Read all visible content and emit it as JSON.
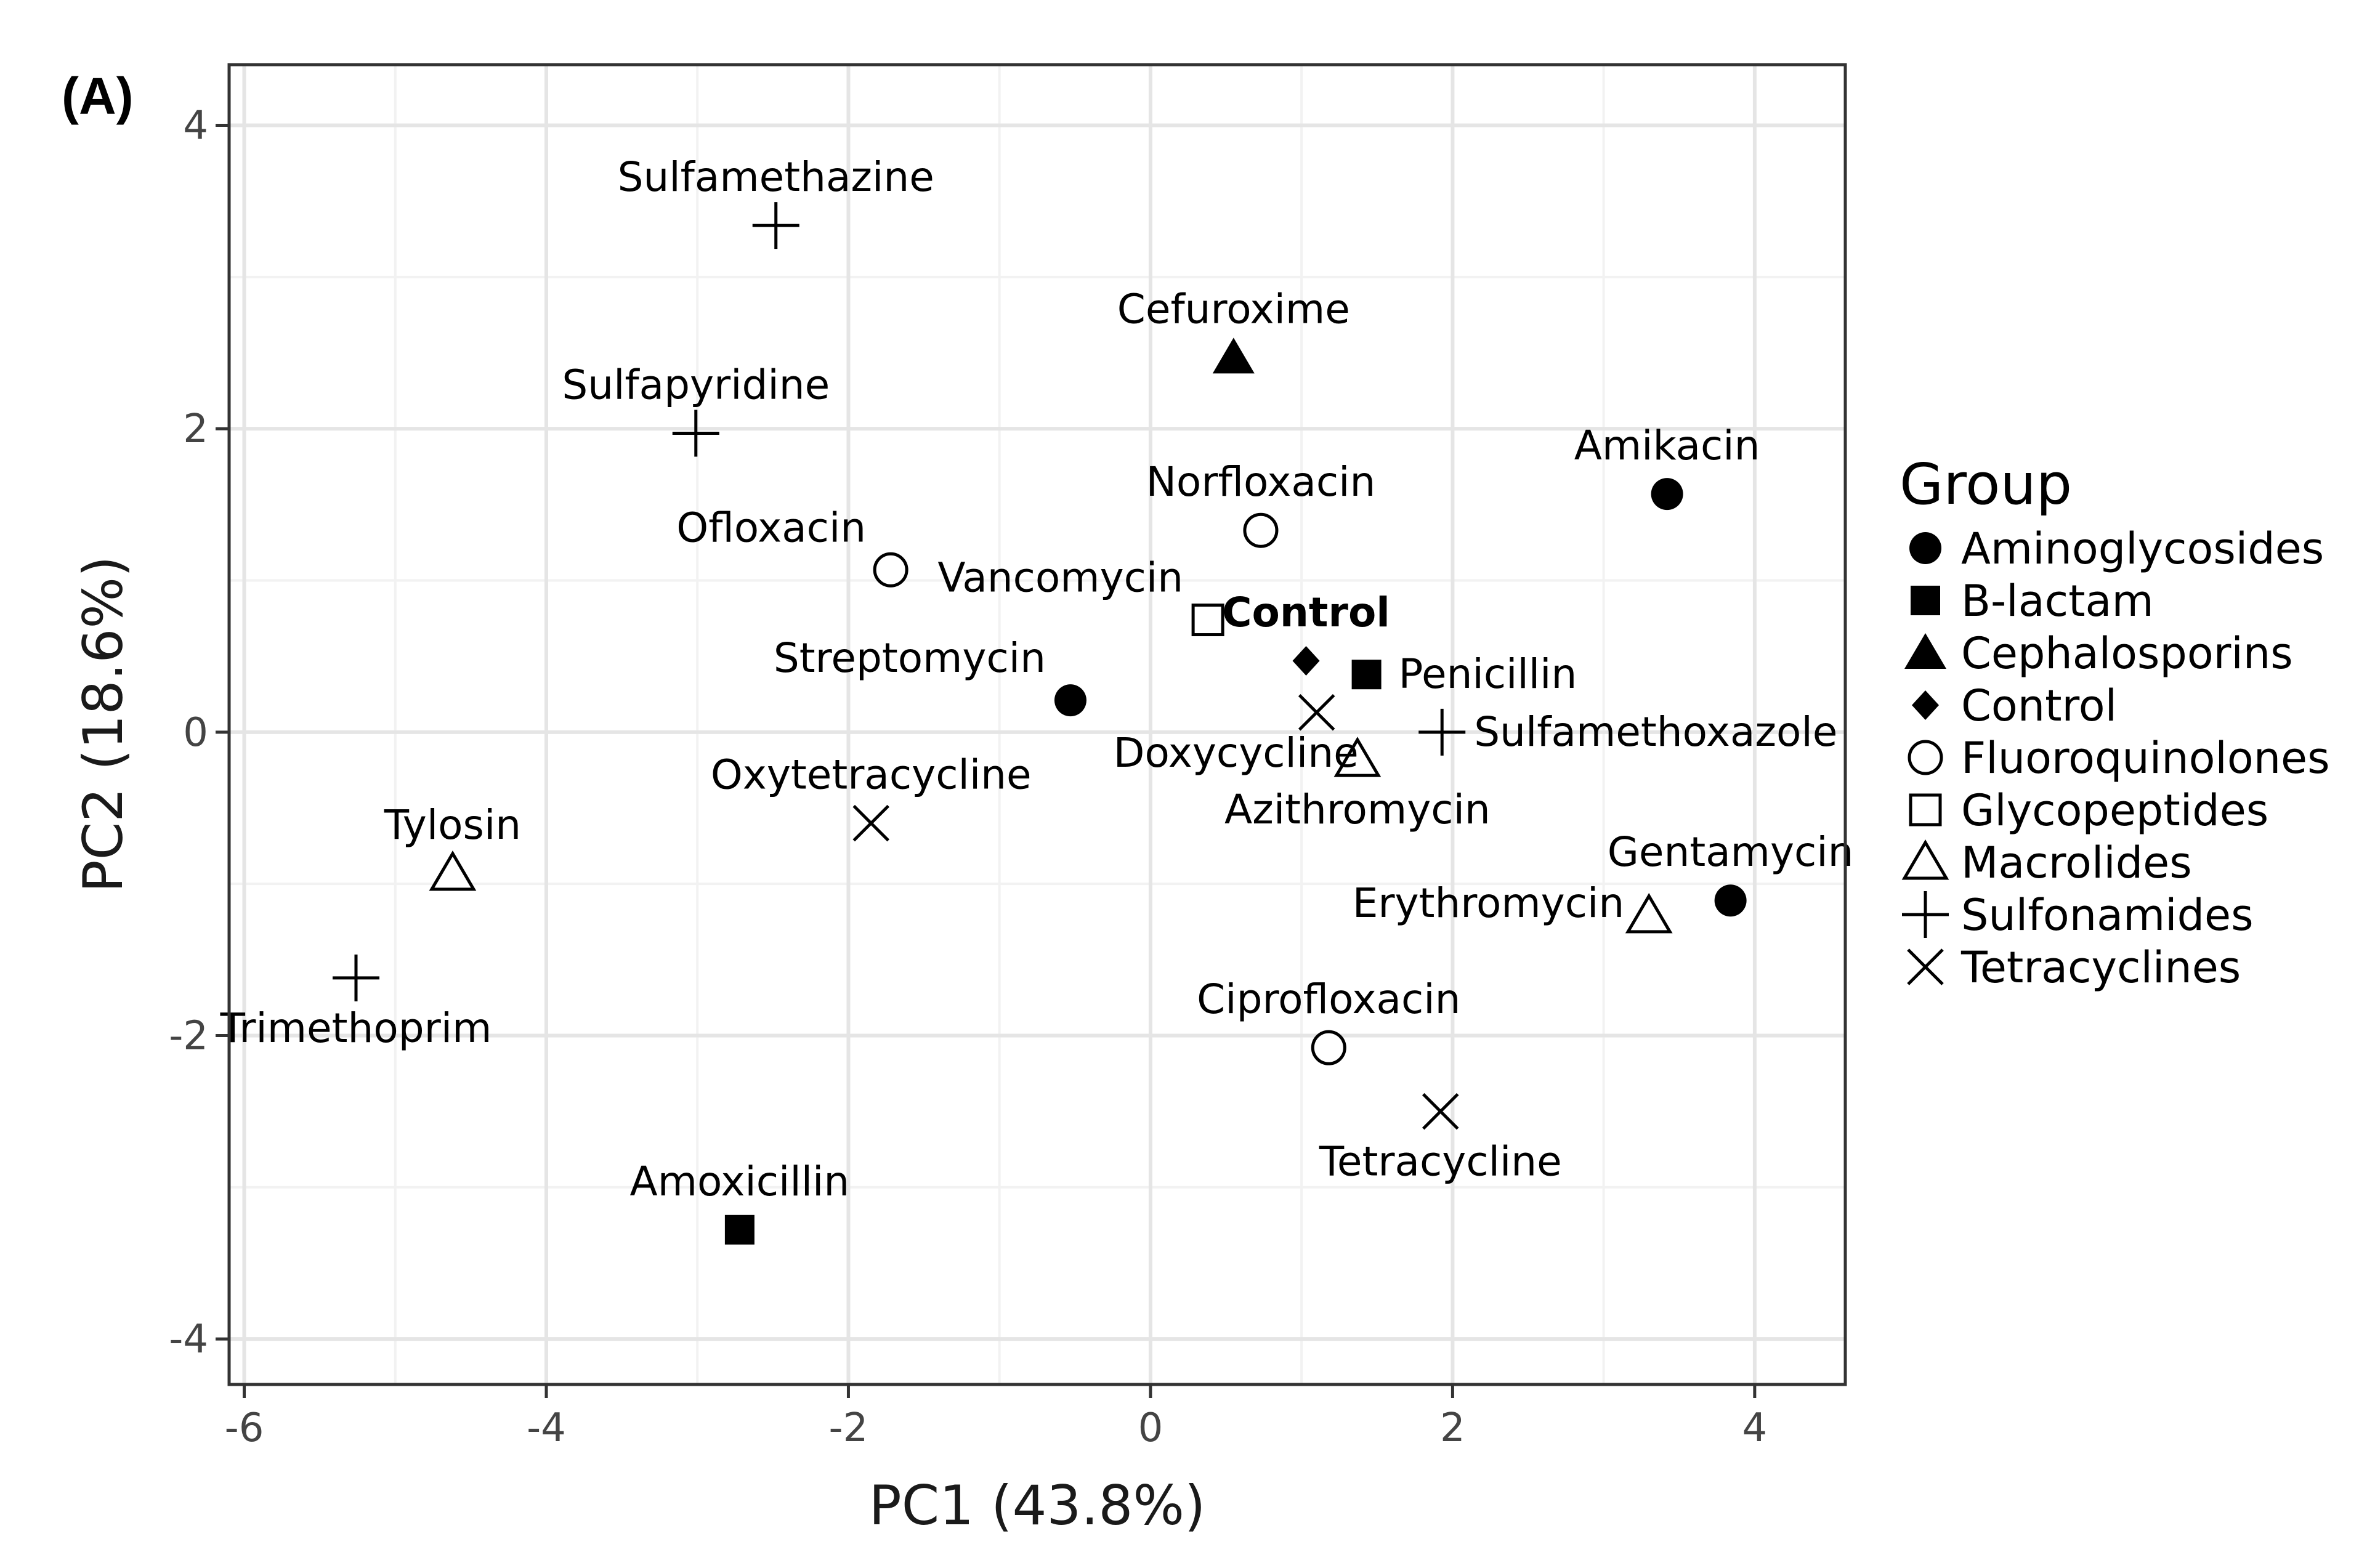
{
  "panel_label": "(A)",
  "chart_data": {
    "type": "scatter",
    "xlabel": "PC1 (43.8%)",
    "ylabel": "PC2 (18.6%)",
    "xlim": [
      -6.1,
      4.6
    ],
    "ylim": [
      -4.3,
      4.4
    ],
    "xticks": [
      -6,
      -4,
      -2,
      0,
      2,
      4
    ],
    "yticks": [
      -4,
      -2,
      0,
      2,
      4
    ],
    "grid": true,
    "legend": {
      "title": "Group",
      "position": "right",
      "items": [
        {
          "name": "Aminoglycosides",
          "shape": "filled-circle"
        },
        {
          "name": "B-lactam",
          "shape": "filled-square"
        },
        {
          "name": "Cephalosporins",
          "shape": "filled-triangle"
        },
        {
          "name": "Control",
          "shape": "filled-diamond"
        },
        {
          "name": "Fluoroquinolones",
          "shape": "open-circle"
        },
        {
          "name": "Glycopeptides",
          "shape": "open-square"
        },
        {
          "name": "Macrolides",
          "shape": "open-triangle"
        },
        {
          "name": "Sulfonamides",
          "shape": "plus"
        },
        {
          "name": "Tetracyclines",
          "shape": "cross"
        }
      ]
    },
    "points": [
      {
        "label": "Sulfamethazine",
        "group": "Sulfonamides",
        "x": -2.48,
        "y": 3.34,
        "label_pos": "above"
      },
      {
        "label": "Cefuroxime",
        "group": "Cephalosporins",
        "x": 0.55,
        "y": 2.47,
        "label_pos": "above"
      },
      {
        "label": "Sulfapyridine",
        "group": "Sulfonamides",
        "x": -3.01,
        "y": 1.97,
        "label_pos": "above"
      },
      {
        "label": "Amikacin",
        "group": "Aminoglycosides",
        "x": 3.42,
        "y": 1.57,
        "label_pos": "above"
      },
      {
        "label": "Norfloxacin",
        "group": "Fluoroquinolones",
        "x": 0.73,
        "y": 1.33,
        "label_pos": "above"
      },
      {
        "label": "Ofloxacin",
        "group": "Fluoroquinolones",
        "x": -1.72,
        "y": 1.07,
        "label_pos": "above-left"
      },
      {
        "label": "Vancomycin",
        "group": "Glycopeptides",
        "x": 0.38,
        "y": 0.74,
        "label_pos": "above-left"
      },
      {
        "label": "Control",
        "group": "Control",
        "x": 1.03,
        "y": 0.47,
        "label_pos": "above",
        "bold": true
      },
      {
        "label": "Penicillin",
        "group": "B-lactam",
        "x": 1.43,
        "y": 0.38,
        "label_pos": "right"
      },
      {
        "label": "Streptomycin",
        "group": "Aminoglycosides",
        "x": -0.53,
        "y": 0.21,
        "label_pos": "above-left"
      },
      {
        "label": "Doxycycline",
        "group": "Tetracyclines",
        "x": 1.1,
        "y": 0.13,
        "label_pos": "below-left"
      },
      {
        "label": "Sulfamethoxazole",
        "group": "Sulfonamides",
        "x": 1.93,
        "y": 0.0,
        "label_pos": "right"
      },
      {
        "label": "Azithromycin",
        "group": "Macrolides",
        "x": 1.37,
        "y": -0.18,
        "label_pos": "below"
      },
      {
        "label": "Oxytetracycline",
        "group": "Tetracyclines",
        "x": -1.85,
        "y": -0.6,
        "label_pos": "above"
      },
      {
        "label": "Tylosin",
        "group": "Macrolides",
        "x": -4.62,
        "y": -0.93,
        "label_pos": "above"
      },
      {
        "label": "Gentamycin",
        "group": "Aminoglycosides",
        "x": 3.84,
        "y": -1.11,
        "label_pos": "above"
      },
      {
        "label": "Erythromycin",
        "group": "Macrolides",
        "x": 3.3,
        "y": -1.21,
        "label_pos": "left"
      },
      {
        "label": "Trimethoprim",
        "group": "Sulfonamides",
        "x": -5.26,
        "y": -1.62,
        "label_pos": "below"
      },
      {
        "label": "Ciprofloxacin",
        "group": "Fluoroquinolones",
        "x": 1.18,
        "y": -2.08,
        "label_pos": "above"
      },
      {
        "label": "Tetracycline",
        "group": "Tetracyclines",
        "x": 1.92,
        "y": -2.5,
        "label_pos": "below"
      },
      {
        "label": "Amoxicillin",
        "group": "B-lactam",
        "x": -2.72,
        "y": -3.28,
        "label_pos": "above"
      }
    ]
  }
}
